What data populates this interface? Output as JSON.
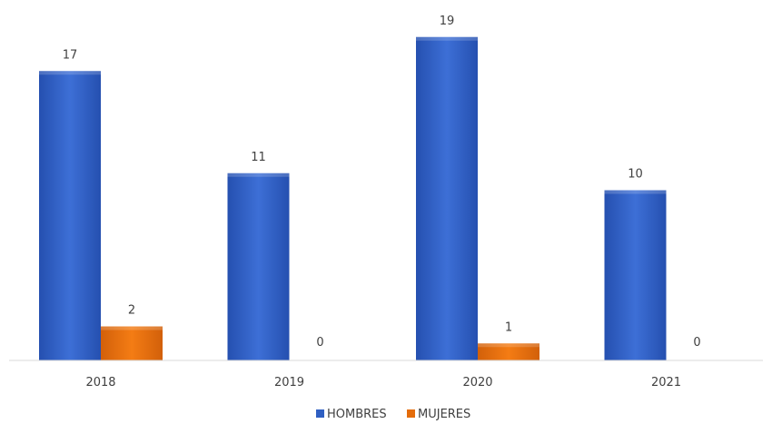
{
  "chart_data": {
    "type": "bar",
    "categories": [
      "2018",
      "2019",
      "2020",
      "2021"
    ],
    "series": [
      {
        "name": "HOMBRES",
        "values": [
          17,
          11,
          19,
          10
        ],
        "color": "#2f5fc2"
      },
      {
        "name": "MUJERES",
        "values": [
          2,
          0,
          1,
          0
        ],
        "color": "#e46c0a"
      }
    ],
    "ylim": [
      0,
      20
    ],
    "grid": false,
    "legend_position": "bottom",
    "data_labels": true
  }
}
